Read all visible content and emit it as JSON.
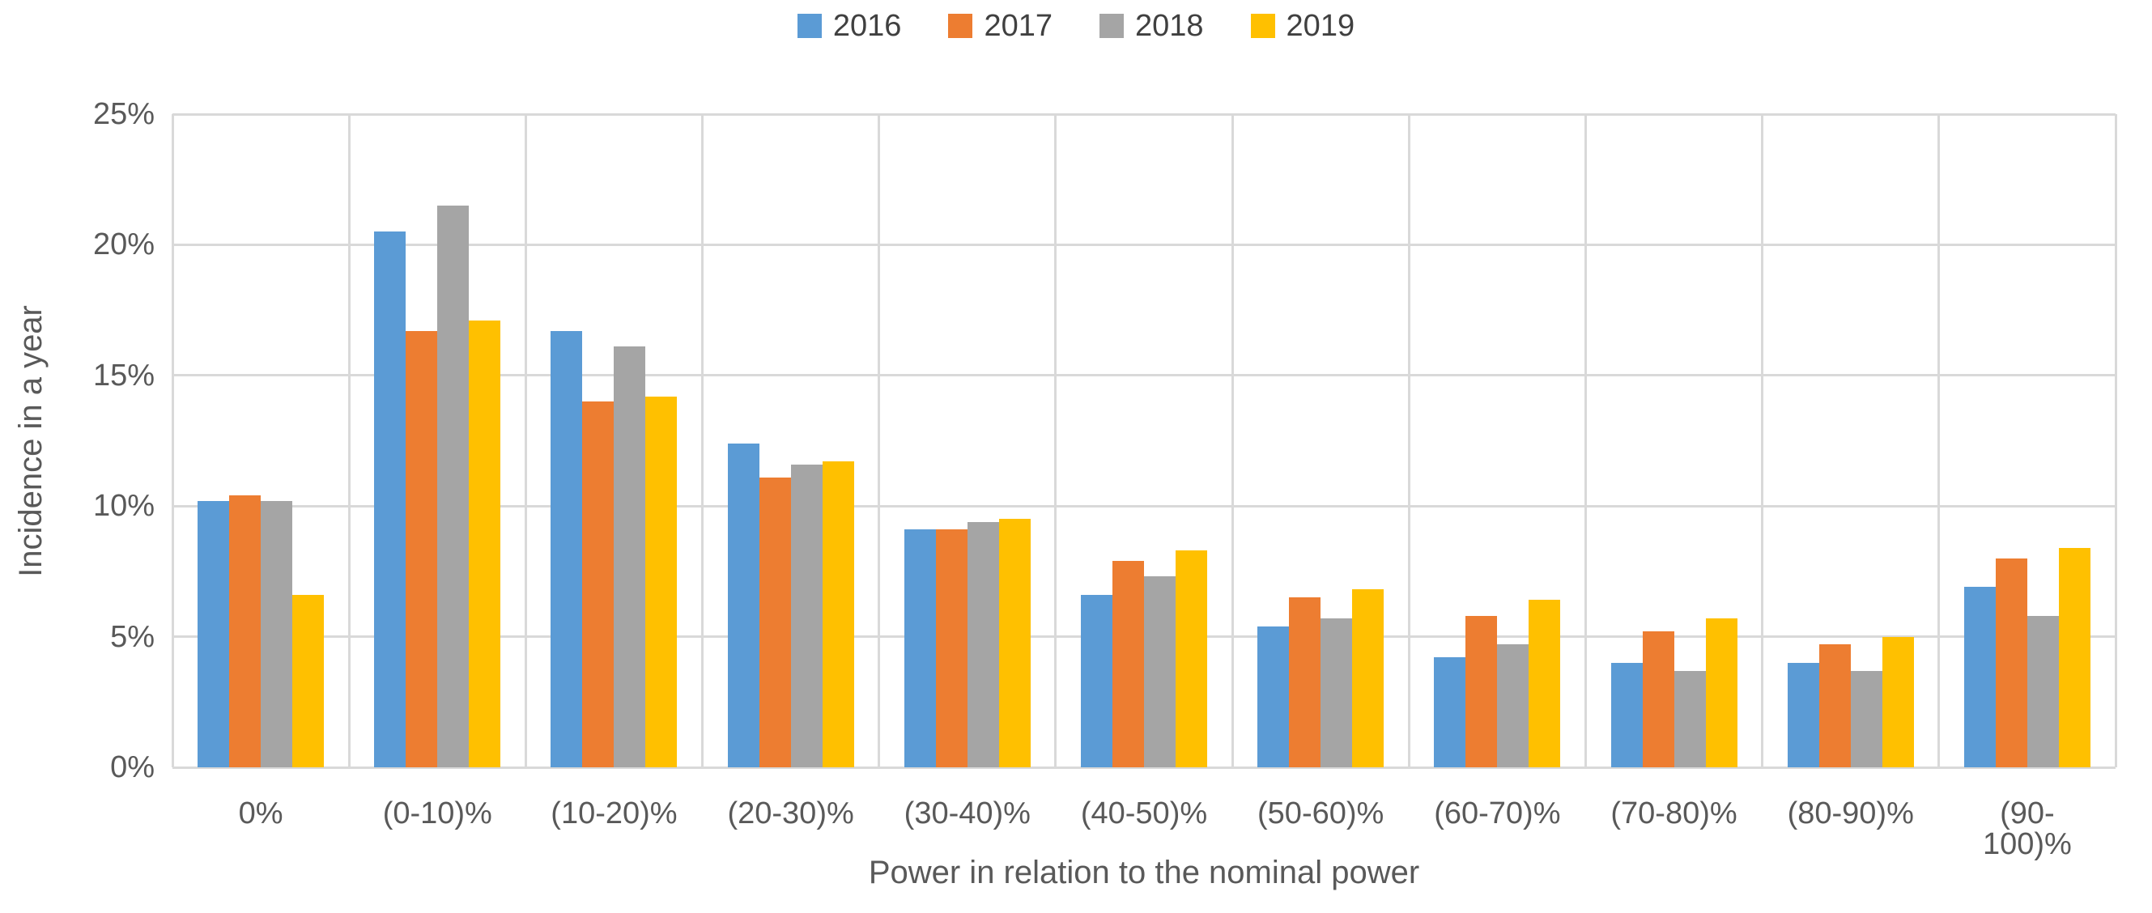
{
  "chart_data": {
    "type": "bar",
    "title": "",
    "xlabel": "Power in relation to the nominal power",
    "ylabel": "Incidence in a year",
    "categories": [
      "0%",
      "(0-10)%",
      "(10-20)%",
      "(20-30)%",
      "(30-40)%",
      "(40-50)%",
      "(50-60)%",
      "(60-70)%",
      "(70-80)%",
      "(80-90)%",
      "(90-100)%"
    ],
    "series": [
      {
        "name": "2016",
        "color": "#5B9BD5",
        "values": [
          10.2,
          20.5,
          16.7,
          12.4,
          9.1,
          6.6,
          5.4,
          4.2,
          4.0,
          4.0,
          6.9
        ]
      },
      {
        "name": "2017",
        "color": "#ED7D31",
        "values": [
          10.4,
          16.7,
          14.0,
          11.1,
          9.1,
          7.9,
          6.5,
          5.8,
          5.2,
          4.7,
          8.0
        ]
      },
      {
        "name": "2018",
        "color": "#A5A5A5",
        "values": [
          10.2,
          21.5,
          16.1,
          11.6,
          9.4,
          7.3,
          5.7,
          4.7,
          3.7,
          3.7,
          5.8
        ]
      },
      {
        "name": "2019",
        "color": "#FFC000",
        "values": [
          6.6,
          17.1,
          14.2,
          11.7,
          9.5,
          8.3,
          6.8,
          6.4,
          5.7,
          5.0,
          8.4
        ]
      }
    ],
    "y_ticks": [
      {
        "value": 0,
        "label": "0%"
      },
      {
        "value": 5,
        "label": "5%"
      },
      {
        "value": 10,
        "label": "10%"
      },
      {
        "value": 15,
        "label": "15%"
      },
      {
        "value": 20,
        "label": "20%"
      },
      {
        "value": 25,
        "label": "25%"
      }
    ],
    "ylim": [
      0,
      25
    ],
    "grid": true,
    "legend_position": "top",
    "gridline_color": "#D9D9D9",
    "text_color": "#595959"
  }
}
